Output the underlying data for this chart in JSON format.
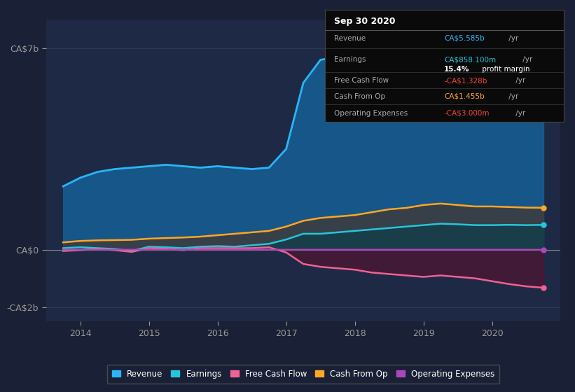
{
  "bg_color": "#1a2035",
  "plot_bg_color": "#1e2a45",
  "grid_color": "#2a3a5a",
  "ylim": [
    -2500000000.0,
    8000000000.0
  ],
  "xlim_start": 2013.5,
  "xlim_end": 2021.0,
  "ylabel_ca7b": "CA$7b",
  "ylabel_ca0": "CA$0",
  "ylabel_cam2b": "-CA$2b",
  "xtick_labels": [
    "2014",
    "2015",
    "2016",
    "2017",
    "2018",
    "2019",
    "2020"
  ],
  "xtick_positions": [
    2014,
    2015,
    2016,
    2017,
    2018,
    2019,
    2020
  ],
  "legend_labels": [
    "Revenue",
    "Earnings",
    "Free Cash Flow",
    "Cash From Op",
    "Operating Expenses"
  ],
  "legend_colors": [
    "#29b6f6",
    "#26c6da",
    "#f06292",
    "#ffa726",
    "#ab47bc"
  ],
  "revenue": {
    "x": [
      2013.75,
      2014.0,
      2014.25,
      2014.5,
      2014.75,
      2015.0,
      2015.25,
      2015.5,
      2015.75,
      2016.0,
      2016.25,
      2016.5,
      2016.75,
      2017.0,
      2017.25,
      2017.5,
      2017.75,
      2018.0,
      2018.25,
      2018.5,
      2018.75,
      2019.0,
      2019.25,
      2019.5,
      2019.75,
      2020.0,
      2020.25,
      2020.5,
      2020.75
    ],
    "y": [
      2200000000,
      2500000000,
      2700000000,
      2800000000,
      2850000000,
      2900000000,
      2950000000,
      2900000000,
      2850000000,
      2900000000,
      2850000000,
      2800000000,
      2850000000,
      3500000000,
      5800000000,
      6600000000,
      6700000000,
      6800000000,
      6700000000,
      6600000000,
      6500000000,
      7000000000,
      7100000000,
      6900000000,
      6800000000,
      6700000000,
      6500000000,
      6300000000,
      5585000000
    ],
    "color": "#29b6f6",
    "fill_color": "#1565a0",
    "fill_alpha": 0.75
  },
  "cash_from_op": {
    "x": [
      2013.75,
      2014.0,
      2014.25,
      2014.5,
      2014.75,
      2015.0,
      2015.25,
      2015.5,
      2015.75,
      2016.0,
      2016.25,
      2016.5,
      2016.75,
      2017.0,
      2017.25,
      2017.5,
      2017.75,
      2018.0,
      2018.25,
      2018.5,
      2018.75,
      2019.0,
      2019.25,
      2019.5,
      2019.75,
      2020.0,
      2020.25,
      2020.5,
      2020.75
    ],
    "y": [
      250000000,
      300000000,
      320000000,
      330000000,
      340000000,
      380000000,
      400000000,
      420000000,
      450000000,
      500000000,
      550000000,
      600000000,
      650000000,
      800000000,
      1000000000,
      1100000000,
      1150000000,
      1200000000,
      1300000000,
      1400000000,
      1450000000,
      1550000000,
      1600000000,
      1550000000,
      1500000000,
      1500000000,
      1480000000,
      1460000000,
      1455000000
    ],
    "color": "#ffa726",
    "fill_color": "#3d3d3d",
    "fill_alpha": 0.85
  },
  "earnings": {
    "x": [
      2013.75,
      2014.0,
      2014.25,
      2014.5,
      2014.75,
      2015.0,
      2015.25,
      2015.5,
      2015.75,
      2016.0,
      2016.25,
      2016.5,
      2016.75,
      2017.0,
      2017.25,
      2017.5,
      2017.75,
      2018.0,
      2018.25,
      2018.5,
      2018.75,
      2019.0,
      2019.25,
      2019.5,
      2019.75,
      2020.0,
      2020.25,
      2020.5,
      2020.75
    ],
    "y": [
      50000000,
      80000000,
      50000000,
      20000000,
      -50000000,
      100000000,
      80000000,
      50000000,
      100000000,
      120000000,
      100000000,
      150000000,
      200000000,
      350000000,
      550000000,
      550000000,
      600000000,
      650000000,
      700000000,
      750000000,
      800000000,
      850000000,
      900000000,
      880000000,
      850000000,
      850000000,
      860000000,
      850000000,
      858000000
    ],
    "color": "#26c6da",
    "fill_color": "#0d3d4a",
    "fill_alpha": 0.7
  },
  "free_cash_flow": {
    "x": [
      2013.75,
      2014.0,
      2014.25,
      2014.5,
      2014.75,
      2015.0,
      2015.25,
      2015.5,
      2015.75,
      2016.0,
      2016.25,
      2016.5,
      2016.75,
      2017.0,
      2017.25,
      2017.5,
      2017.75,
      2018.0,
      2018.25,
      2018.5,
      2018.75,
      2019.0,
      2019.25,
      2019.5,
      2019.75,
      2020.0,
      2020.25,
      2020.5,
      2020.75
    ],
    "y": [
      -50000000,
      -20000000,
      20000000,
      -20000000,
      -80000000,
      50000000,
      30000000,
      -20000000,
      50000000,
      50000000,
      50000000,
      50000000,
      80000000,
      -100000000,
      -500000000,
      -600000000,
      -650000000,
      -700000000,
      -800000000,
      -850000000,
      -900000000,
      -950000000,
      -900000000,
      -950000000,
      -1000000000,
      -1100000000,
      -1200000000,
      -1280000000,
      -1328000000
    ],
    "color": "#f06292",
    "fill_color": "#5a1030",
    "fill_alpha": 0.6
  },
  "operating_expenses": {
    "x": [
      2013.75,
      2014.0,
      2014.25,
      2014.5,
      2014.75,
      2015.0,
      2015.25,
      2015.5,
      2015.75,
      2016.0,
      2016.25,
      2016.5,
      2016.75,
      2017.0,
      2017.25,
      2017.5,
      2017.75,
      2018.0,
      2018.25,
      2018.5,
      2018.75,
      2019.0,
      2019.25,
      2019.5,
      2019.75,
      2020.0,
      2020.25,
      2020.5,
      2020.75
    ],
    "y": [
      -2000000,
      -2000000,
      -2000000,
      -2000000,
      -2000000,
      -2000000,
      -2000000,
      -2000000,
      -2000000,
      -2000000,
      -2000000,
      -2000000,
      -2000000,
      -3000000,
      -3000000,
      -3000000,
      -3000000,
      -3000000,
      -3000000,
      -3000000,
      -3000000,
      -3000000,
      -3000000,
      -3000000,
      -3000000,
      -3000000,
      -3000000,
      -3000000,
      -3000000
    ],
    "color": "#ab47bc",
    "fill_color": "#3a1050",
    "fill_alpha": 0.5
  }
}
